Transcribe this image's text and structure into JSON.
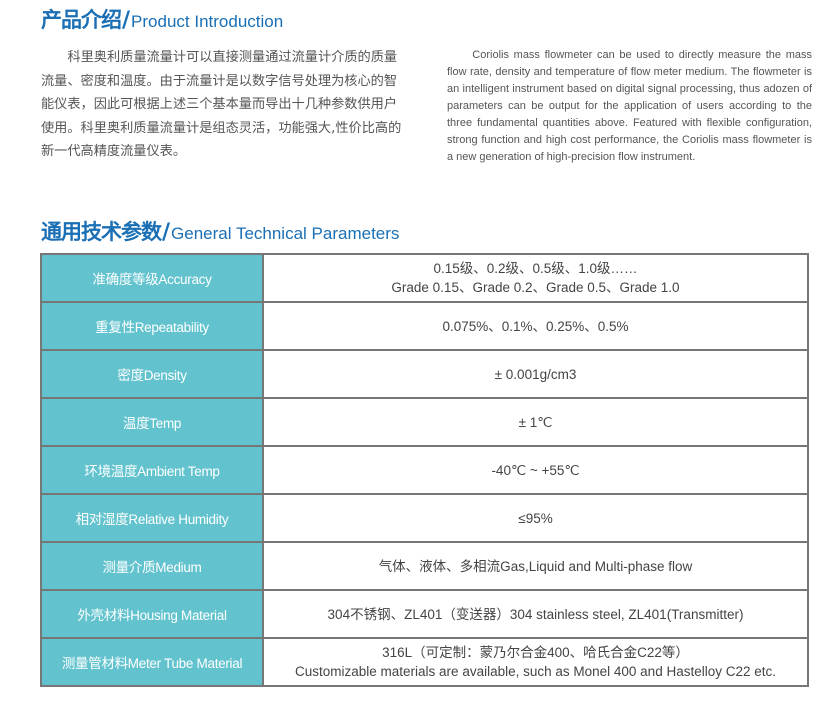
{
  "intro": {
    "title_cn": "产品介绍",
    "separator": "/",
    "title_en": "Product Introduction",
    "text_cn": "科里奥利质量流量计可以直接测量通过流量计介质的质量流量、密度和温度。由于流量计是以数字信号处理为核心的智能仪表，因此可根据上述三个基本量而导出十几种参数供用户使用。科里奥利质量流量计是组态灵活，功能强大,性价比高的新一代高精度流量仪表。",
    "text_en": "Coriolis mass flowmeter can be used to directly measure the mass flow rate, density and temperature of flow meter medium. The flowmeter is an intelligent instrument based on digital signal processing, thus adozen of parameters can be output for the application of users according to the three fundamental quantities above. Featured with flexible configuration, strong function and high cost performance, the Coriolis mass flowmeter is a new generation of high-precision flow instrument."
  },
  "params": {
    "title_cn": "通用技术参数",
    "separator": "/",
    "title_en": "General Technical Parameters",
    "accent_color": "#62c3cf",
    "rows": [
      {
        "label": "准确度等级Accuracy",
        "value": "0.15级、0.2级、0.5级、1.0级……",
        "value2": "Grade 0.15、Grade 0.2、Grade 0.5、Grade 1.0"
      },
      {
        "label": "重复性Repeatability",
        "value": "0.075%、0.1%、0.25%、0.5%"
      },
      {
        "label": "密度Density",
        "value": "± 0.001g/cm3"
      },
      {
        "label": "温度Temp",
        "value": "± 1℃"
      },
      {
        "label": "环境温度Ambient Temp",
        "value": "-40℃ ~ +55℃"
      },
      {
        "label": "相对湿度Relative Humidity",
        "value": "≤95%"
      },
      {
        "label": "测量介质Medium",
        "value": "气体、液体、多相流Gas,Liquid and Multi-phase flow"
      },
      {
        "label": "外壳材料Housing Material",
        "value": "304不锈钢、ZL401（变送器）304 stainless steel, ZL401(Transmitter)"
      },
      {
        "label": "测量管材料Meter Tube Material",
        "value": "316L（可定制：蒙乃尔合金400、哈氏合金C22等）",
        "value2": "Customizable materials are available, such as Monel 400 and Hastelloy C22 etc."
      }
    ]
  }
}
